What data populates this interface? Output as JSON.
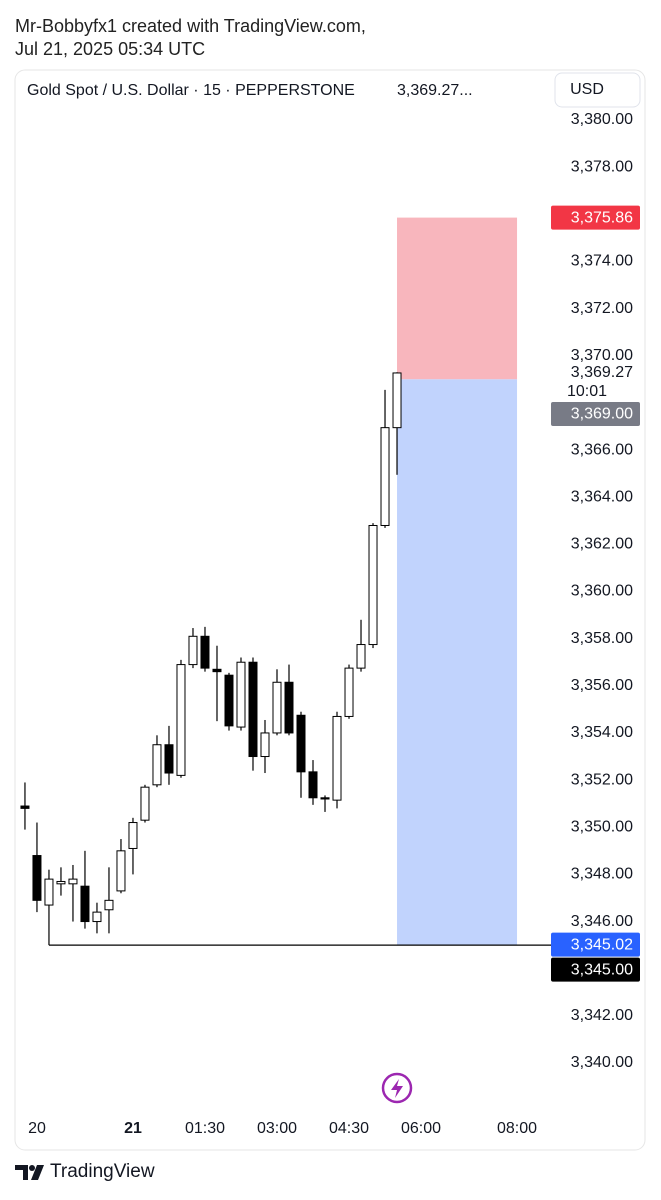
{
  "header": {
    "line1": "Mr-Bobbyfx1 created with TradingView.com,",
    "line2": "Jul 21, 2025 05:34 UTC"
  },
  "footer": "TradingView",
  "chart_data": {
    "type": "candlestick",
    "title": "Gold Spot / U.S. Dollar · 15 · PEPPERSTONE",
    "title_price": "3,369.27...",
    "currency": "USD",
    "x": [
      0,
      1,
      2,
      3,
      4,
      5,
      6,
      7,
      8,
      9,
      10,
      11,
      12,
      13,
      14,
      15,
      16,
      17,
      18,
      19,
      20,
      21,
      22,
      23,
      24,
      25,
      26,
      27,
      28,
      29,
      30,
      31
    ],
    "open": [
      3350.9,
      3348.8,
      3346.7,
      3347.6,
      3347.6,
      3347.5,
      3346.0,
      3346.5,
      3347.3,
      3349.1,
      3350.3,
      3351.8,
      3353.5,
      3352.2,
      3356.9,
      3358.1,
      3356.7,
      3356.45,
      3354.25,
      3357.0,
      3353.0,
      3354.0,
      3356.15,
      3354.75,
      3352.35,
      3351.25,
      3351.15,
      3354.7,
      3356.75,
      3357.75,
      3362.8,
      3366.95
    ],
    "high": [
      3351.9,
      3350.2,
      3348.2,
      3348.3,
      3348.4,
      3349.0,
      3346.8,
      3348.3,
      3349.5,
      3350.4,
      3351.8,
      3353.9,
      3354.3,
      3357.1,
      3358.45,
      3358.5,
      3357.7,
      3356.55,
      3357.2,
      3357.2,
      3354.55,
      3356.7,
      3356.9,
      3354.9,
      3352.85,
      3351.35,
      3354.9,
      3356.9,
      3358.8,
      3362.9,
      3368.55,
      3369.3
    ],
    "low": [
      3349.9,
      3346.4,
      3345.0,
      3347.1,
      3346.0,
      3345.7,
      3345.5,
      3345.5,
      3347.2,
      3348.0,
      3350.2,
      3351.7,
      3351.8,
      3352.1,
      3356.75,
      3356.6,
      3354.5,
      3354.1,
      3354.1,
      3352.4,
      3352.3,
      3353.9,
      3353.9,
      3351.25,
      3350.95,
      3350.65,
      3350.8,
      3354.6,
      3356.6,
      3357.6,
      3362.7,
      3364.95
    ],
    "close": [
      3350.8,
      3346.9,
      3347.8,
      3347.7,
      3347.8,
      3346.0,
      3346.4,
      3346.9,
      3349.0,
      3350.2,
      3351.7,
      3353.5,
      3352.3,
      3356.9,
      3358.1,
      3356.75,
      3356.6,
      3354.3,
      3357.0,
      3353.0,
      3354.0,
      3356.15,
      3354.0,
      3352.35,
      3351.25,
      3351.2,
      3354.7,
      3356.75,
      3357.75,
      3362.8,
      3366.95,
      3369.27
    ],
    "up_color": "#ffffff",
    "down_color": "#000000",
    "wick_color": "#000000",
    "xlim": [
      -0.83,
      43.58
    ],
    "ylim": [
      3338,
      3382
    ],
    "xticks": [
      {
        "value": 1,
        "label": "20"
      },
      {
        "value": 9,
        "label": "21",
        "bold": true
      },
      {
        "value": 15,
        "label": "01:30"
      },
      {
        "value": 21,
        "label": "03:00"
      },
      {
        "value": 27,
        "label": "04:30"
      },
      {
        "value": 33,
        "label": "06:00"
      },
      {
        "value": 41,
        "label": "08:00"
      }
    ],
    "yticks": [
      {
        "value": 3380,
        "label": "3,380.00"
      },
      {
        "value": 3378,
        "label": "3,378.00"
      },
      {
        "value": 3374,
        "label": "3,374.00"
      },
      {
        "value": 3372,
        "label": "3,372.00"
      },
      {
        "value": 3370,
        "label": "3,370.00"
      },
      {
        "value": 3366,
        "label": "3,366.00"
      },
      {
        "value": 3364,
        "label": "3,364.00"
      },
      {
        "value": 3362,
        "label": "3,362.00"
      },
      {
        "value": 3360,
        "label": "3,360.00"
      },
      {
        "value": 3358,
        "label": "3,358.00"
      },
      {
        "value": 3356,
        "label": "3,356.00"
      },
      {
        "value": 3354,
        "label": "3,354.00"
      },
      {
        "value": 3352,
        "label": "3,352.00"
      },
      {
        "value": 3350,
        "label": "3,350.00"
      },
      {
        "value": 3348,
        "label": "3,348.00"
      },
      {
        "value": 3346,
        "label": "3,346.00"
      },
      {
        "value": 3342,
        "label": "3,342.00"
      },
      {
        "value": 3340,
        "label": "3,340.00"
      }
    ],
    "position": {
      "entry": 3369.0,
      "stop": 3375.86,
      "target": 3345.02,
      "start": 31,
      "end": 41,
      "stop_color": "#f8b6bd",
      "target_color": "#c1d3fd"
    },
    "level": {
      "value": 3345.0,
      "start": 2,
      "color": "#000000"
    },
    "current": {
      "value": 3369.27,
      "label": "3,369.27",
      "countdown": "10:01"
    },
    "price_labels": [
      {
        "value": 3375.86,
        "label": "3,375.86",
        "color": "#f23645"
      },
      {
        "value": 3369.0,
        "label": "3,369.00",
        "color": "#787b86"
      },
      {
        "value": 3345.02,
        "label": "3,345.02",
        "color": "#2962ff"
      },
      {
        "value": 3345.0,
        "label": "3,345.00",
        "color": "#000000"
      }
    ]
  }
}
